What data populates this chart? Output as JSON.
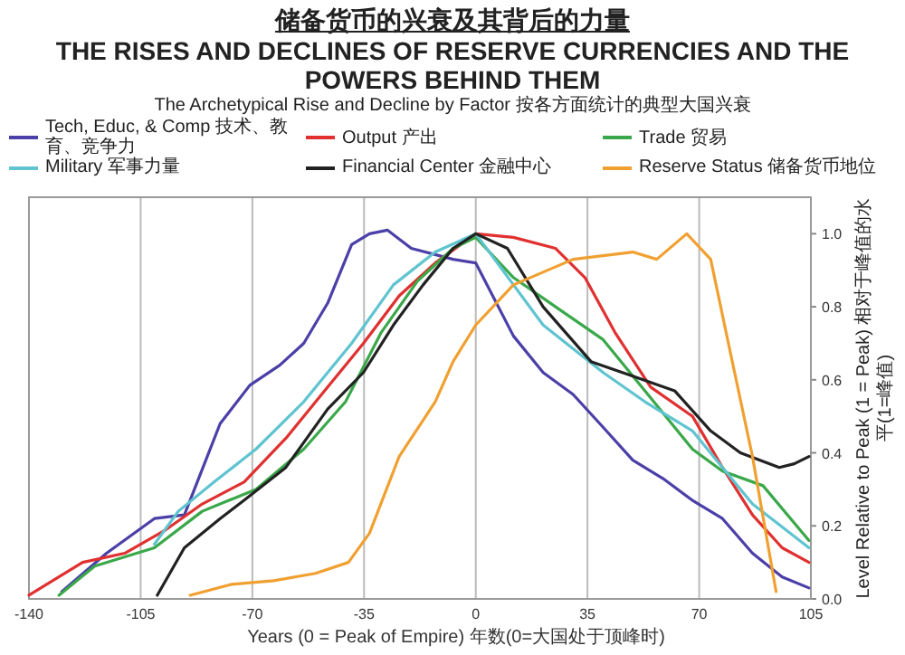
{
  "chart_data": {
    "type": "line",
    "title": "储备货币的兴衰及其背后的力量",
    "subtitle": "THE RISES AND DECLINES OF RESERVE CURRENCIES AND THE POWERS BEHIND THEM",
    "annotations": [
      "The Archetypical Rise and Decline by Factor 按各方面统计的典型大国兴衰"
    ],
    "xlabel": "Years (0 = Peak of Empire) 年数(0=大国处于顶峰时)",
    "ylabel": "Level Relative to Peak (1 = Peak) 相对于峰值的水平(1=峰值)",
    "xlim": [
      -140,
      105
    ],
    "ylim": [
      0,
      1.1
    ],
    "xticks": [
      -140,
      -105,
      -70,
      -35,
      0,
      35,
      70,
      105
    ],
    "yticks": [
      {
        "value": 0,
        "label": "0.0"
      },
      0.2,
      0.4,
      0.6,
      0.8,
      {
        "value": 1,
        "label": "1.0"
      }
    ],
    "grid": "x",
    "legend": "top",
    "series": [
      {
        "name": "Tech, Educ, & Comp 技术、教育、竞争力",
        "color": "#4b3fa8",
        "x": [
          -129.7,
          -115.7,
          -100.7,
          -91.3,
          -80.1,
          -70.8,
          -61.4,
          -53.9,
          -46.4,
          -38.9,
          -33.3,
          -27.7,
          -20.2,
          -7.1,
          0,
          11.8,
          21.1,
          30.5,
          39.9,
          49.2,
          58.6,
          67.9,
          77.3,
          86.7,
          96,
          104.4
        ],
        "values": [
          0.02,
          0.125,
          0.22,
          0.23,
          0.48,
          0.585,
          0.64,
          0.7,
          0.81,
          0.97,
          1.0,
          1.01,
          0.96,
          0.93,
          0.92,
          0.72,
          0.62,
          0.56,
          0.47,
          0.38,
          0.33,
          0.27,
          0.22,
          0.125,
          0.06,
          0.03
        ]
      },
      {
        "name": "Output 产出",
        "color": "#e03030",
        "x": [
          -140,
          -123.2,
          -110,
          -97,
          -85.7,
          -72.6,
          -59.5,
          -48.3,
          -35.2,
          -24,
          -12.7,
          0,
          11.8,
          25,
          34.2,
          43.6,
          54.8,
          67.9,
          77.3,
          86.7,
          96,
          104.4
        ],
        "values": [
          0.01,
          0.1,
          0.125,
          0.19,
          0.26,
          0.32,
          0.44,
          0.56,
          0.7,
          0.83,
          0.92,
          1.0,
          0.99,
          0.96,
          0.88,
          0.73,
          0.58,
          0.5,
          0.36,
          0.23,
          0.14,
          0.1
        ]
      },
      {
        "name": "Trade 贸易",
        "color": "#3aa84a",
        "x": [
          -130.6,
          -119.4,
          -100.7,
          -85.7,
          -68.9,
          -53.9,
          -40.8,
          -29.6,
          -18.3,
          -7.1,
          0,
          11.8,
          25,
          39.9,
          53,
          67.9,
          77.3,
          90,
          104.4
        ],
        "values": [
          0.01,
          0.09,
          0.14,
          0.24,
          0.3,
          0.41,
          0.54,
          0.73,
          0.87,
          0.96,
          0.99,
          0.88,
          0.8,
          0.71,
          0.57,
          0.41,
          0.35,
          0.31,
          0.16
        ]
      },
      {
        "name": "Military 军事力量",
        "color": "#5fc4d0",
        "x": [
          -100.7,
          -93.2,
          -82,
          -68.9,
          -53.9,
          -38.9,
          -25.8,
          -12.7,
          0,
          21.1,
          39.9,
          53,
          67.9,
          86.7,
          104.4
        ],
        "values": [
          0.15,
          0.24,
          0.32,
          0.41,
          0.54,
          0.7,
          0.86,
          0.95,
          1.0,
          0.75,
          0.62,
          0.54,
          0.46,
          0.26,
          0.14
        ]
      },
      {
        "name": "Financial Center 金融中心",
        "color": "#222222",
        "x": [
          -99.8,
          -91.3,
          -80.1,
          -72.6,
          -59.5,
          -46.4,
          -35.2,
          -25.8,
          -16.5,
          -7.1,
          0,
          9.9,
          21.1,
          36.1,
          49.2,
          62.3,
          73.6,
          82.9,
          95.1,
          99.8,
          104.4
        ],
        "values": [
          0.01,
          0.14,
          0.22,
          0.27,
          0.36,
          0.52,
          0.62,
          0.75,
          0.86,
          0.96,
          1.0,
          0.96,
          0.8,
          0.65,
          0.61,
          0.57,
          0.46,
          0.4,
          0.36,
          0.37,
          0.39
        ]
      },
      {
        "name": "Reserve Status 储备货币地位",
        "color": "#f0a030",
        "x": [
          -89.5,
          -76.4,
          -63.3,
          -50.2,
          -39.9,
          -33.3,
          -24,
          -12.7,
          -7.1,
          0,
          11.8,
          30.5,
          49.2,
          56.7,
          66.1,
          73.6,
          81.1,
          86.7,
          94.1
        ],
        "values": [
          0.01,
          0.04,
          0.05,
          0.07,
          0.1,
          0.18,
          0.39,
          0.54,
          0.65,
          0.75,
          0.86,
          0.93,
          0.95,
          0.93,
          1.0,
          0.93,
          0.62,
          0.39,
          0.02
        ]
      }
    ]
  }
}
